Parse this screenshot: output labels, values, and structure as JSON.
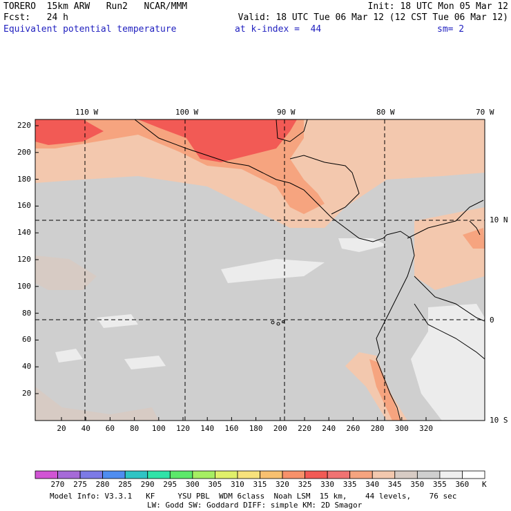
{
  "header": {
    "line1_left": "TORERO  15km ARW   Run2   NCAR/MMM",
    "line1_right": "Init: 18 UTC Mon 05 Mar 12",
    "line2_left": "Fcst:   24 h",
    "line2_right": "Valid: 18 UTC Tue 06 Mar 12 (12 CST Tue 06 Mar 12)",
    "field_name": "Equivalent potential temperature",
    "level": "at k-index =  44",
    "smoothing": "sm= 2"
  },
  "map": {
    "longitude_labels": [
      "110 W",
      "100 W",
      "90 W",
      "80 W",
      "70 W"
    ],
    "latitude_labels": [
      "10 N",
      "0",
      "10 S"
    ],
    "y_grid_labels": [
      "220",
      "200",
      "180",
      "160",
      "140",
      "120",
      "100",
      "80",
      "60",
      "40",
      "20"
    ],
    "x_grid_labels": [
      "20",
      "40",
      "60",
      "80",
      "100",
      "120",
      "140",
      "160",
      "180",
      "200",
      "220",
      "240",
      "260",
      "280",
      "300",
      "320"
    ],
    "colors": {
      "hot": "#f25a55",
      "warm": "#f6a47f",
      "tan": "#f3c8ae",
      "taupe": "#d7cbc4",
      "gray": "#cfcfcf",
      "light": "#ececec"
    }
  },
  "colorbar": {
    "labels": [
      "270",
      "275",
      "280",
      "285",
      "290",
      "295",
      "300",
      "305",
      "310",
      "315",
      "320",
      "325",
      "330",
      "335",
      "340",
      "345",
      "350",
      "355",
      "360"
    ],
    "unit": "K",
    "colors": [
      "#d154d4",
      "#a66ad8",
      "#7c7ae6",
      "#4f8df0",
      "#2fc4c4",
      "#30e3a8",
      "#5ce86a",
      "#a6ee62",
      "#e0f06a",
      "#f7e27c",
      "#f8c070",
      "#f7916a",
      "#f25a55",
      "#f07272",
      "#f6a47f",
      "#f3c8ae",
      "#d7cbc4",
      "#cfcfcf",
      "#efefef",
      "#ffffff"
    ]
  },
  "footer": {
    "line1": "Model Info: V3.3.1   KF     YSU PBL  WDM 6class  Noah LSM  15 km,    44 levels,    76 sec",
    "line2": "LW: Godd SW: Goddard DIFF: simple KM: 2D Smagor"
  }
}
